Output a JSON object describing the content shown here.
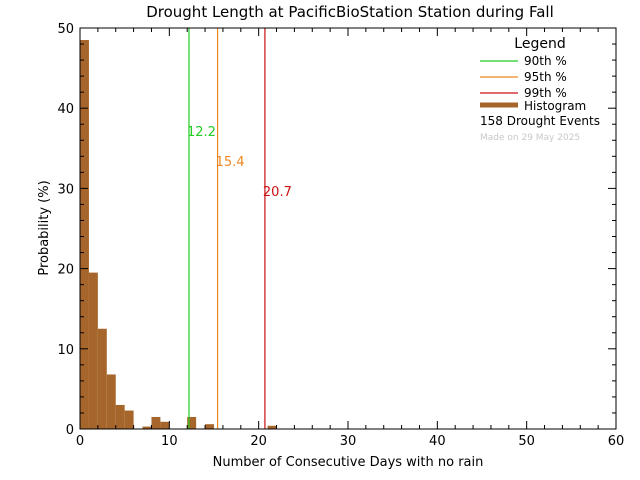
{
  "chart_data": {
    "type": "bar",
    "title": "Drought Length at PacificBioStation Station during Fall",
    "xlabel": "Number of Consecutive Days with no rain",
    "ylabel": "Probability (%)",
    "xlim": [
      0,
      60
    ],
    "ylim": [
      0,
      50
    ],
    "xticks": [
      "0",
      "10",
      "20",
      "30",
      "40",
      "50",
      "60"
    ],
    "yticks": [
      "0",
      "10",
      "20",
      "30",
      "40",
      "50"
    ],
    "bin_width": 1,
    "bar_color": "#a6652b",
    "bins": [
      {
        "x": 0,
        "value": 48.5
      },
      {
        "x": 1,
        "value": 19.5
      },
      {
        "x": 2,
        "value": 12.5
      },
      {
        "x": 3,
        "value": 6.8
      },
      {
        "x": 4,
        "value": 3.0
      },
      {
        "x": 5,
        "value": 2.3
      },
      {
        "x": 7,
        "value": 0.3
      },
      {
        "x": 8,
        "value": 1.5
      },
      {
        "x": 9,
        "value": 0.9
      },
      {
        "x": 12,
        "value": 1.5
      },
      {
        "x": 14,
        "value": 0.6
      },
      {
        "x": 21,
        "value": 0.4
      }
    ],
    "percentiles": [
      {
        "name": "90th %",
        "value": 12.2,
        "label": "12.2",
        "color": "#22cc22"
      },
      {
        "name": "95th %",
        "value": 15.4,
        "label": "15.4",
        "color": "#ee8822"
      },
      {
        "name": "99th %",
        "value": 20.7,
        "label": "20.7",
        "color": "#cc1111"
      }
    ],
    "legend": {
      "title": "Legend",
      "position": "top-right",
      "histogram_label": "Histogram",
      "events_text": "158 Drought Events",
      "made_on": "Made on 29 May 2025"
    }
  }
}
